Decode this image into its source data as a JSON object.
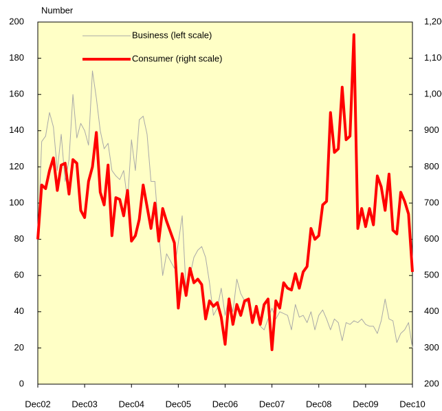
{
  "chart_data": {
    "type": "line",
    "y_label": "Number",
    "categories": [
      "Dec02",
      null,
      null,
      null,
      null,
      null,
      null,
      null,
      null,
      null,
      null,
      null,
      "Dec03",
      null,
      null,
      null,
      null,
      null,
      null,
      null,
      null,
      null,
      null,
      null,
      "Dec04",
      null,
      null,
      null,
      null,
      null,
      null,
      null,
      null,
      null,
      null,
      null,
      "Dec05",
      null,
      null,
      null,
      null,
      null,
      null,
      null,
      null,
      null,
      null,
      null,
      "Dec06",
      null,
      null,
      null,
      null,
      null,
      null,
      null,
      null,
      null,
      null,
      null,
      "Dec07",
      null,
      null,
      null,
      null,
      null,
      null,
      null,
      null,
      null,
      null,
      null,
      "Dec08",
      null,
      null,
      null,
      null,
      null,
      null,
      null,
      null,
      null,
      null,
      null,
      "Dec09",
      null,
      null,
      null,
      null,
      null,
      null,
      null,
      null,
      null,
      null,
      null,
      "Dec10"
    ],
    "series": [
      {
        "name": "Business (left scale)",
        "color": "#a8a8a8",
        "axis": "y",
        "values": [
          80,
          134,
          137,
          150,
          142,
          118,
          138,
          112,
          124,
          160,
          136,
          144,
          140,
          132,
          173,
          158,
          140,
          130,
          133,
          118,
          115,
          113,
          118,
          101,
          135,
          118,
          146,
          148,
          138,
          112,
          112,
          84,
          60,
          72,
          68,
          64,
          78,
          93,
          52,
          60,
          70,
          74,
          76,
          70,
          56,
          38,
          42,
          53,
          38,
          48,
          40,
          58,
          50,
          46,
          45,
          38,
          40,
          32,
          30,
          36,
          42,
          36,
          40,
          39,
          38,
          30,
          44,
          37,
          38,
          34,
          40,
          30,
          38,
          41,
          36,
          30,
          36,
          34,
          24,
          34,
          33,
          35,
          34,
          36,
          33,
          32,
          32,
          28,
          35,
          47,
          36,
          35,
          23,
          28,
          30,
          34,
          20
        ]
      },
      {
        "name": "Consumer (right scale)",
        "color": "#ff0000",
        "axis": "y2",
        "values": [
          600,
          750,
          740,
          790,
          825,
          735,
          805,
          810,
          725,
          820,
          810,
          680,
          660,
          760,
          800,
          895,
          730,
          695,
          805,
          610,
          715,
          710,
          665,
          735,
          595,
          610,
          655,
          750,
          690,
          630,
          700,
          595,
          685,
          650,
          620,
          590,
          410,
          505,
          445,
          520,
          480,
          490,
          475,
          380,
          430,
          415,
          425,
          385,
          310,
          435,
          365,
          420,
          390,
          430,
          435,
          370,
          415,
          365,
          420,
          435,
          295,
          430,
          410,
          480,
          465,
          460,
          505,
          465,
          510,
          525,
          630,
          600,
          610,
          695,
          705,
          950,
          840,
          850,
          1020,
          875,
          885,
          1165,
          630,
          685,
          635,
          685,
          640,
          775,
          745,
          680,
          780,
          625,
          615,
          730,
          705,
          670,
          510
        ]
      }
    ],
    "ylim": [
      0,
      200
    ],
    "yticks": [
      0,
      20,
      40,
      60,
      80,
      100,
      120,
      140,
      160,
      180,
      200
    ],
    "y2lim": [
      200,
      1200
    ],
    "y2ticks": [
      200,
      300,
      400,
      500,
      600,
      700,
      800,
      900,
      {
        "value": 1000,
        "label": "1,000"
      },
      {
        "value": 1100,
        "label": "1,100"
      },
      {
        "value": 1200,
        "label": "1,200"
      }
    ],
    "plot_background": "#ffffc6",
    "legend": "upper-left"
  }
}
